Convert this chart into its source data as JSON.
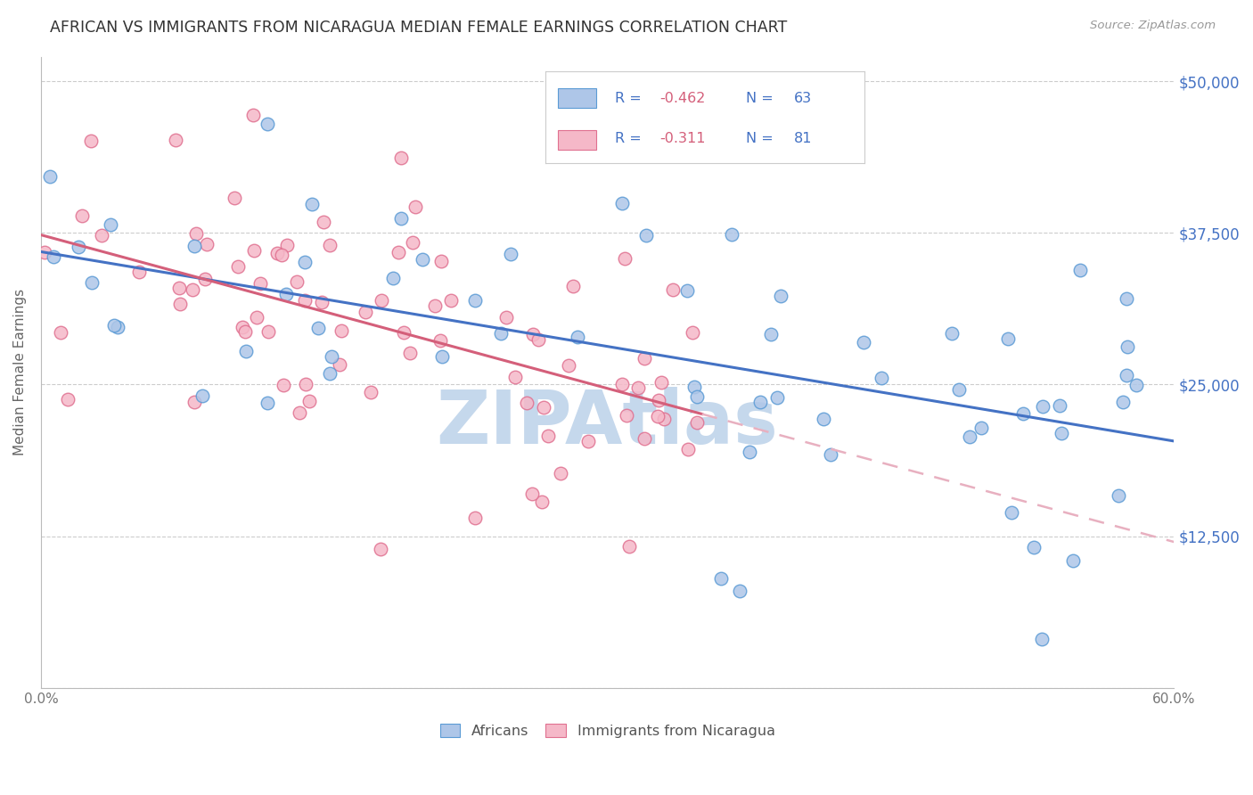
{
  "title": "AFRICAN VS IMMIGRANTS FROM NICARAGUA MEDIAN FEMALE EARNINGS CORRELATION CHART",
  "source": "Source: ZipAtlas.com",
  "ylabel": "Median Female Earnings",
  "yticks": [
    0,
    12500,
    25000,
    37500,
    50000
  ],
  "ytick_labels": [
    "",
    "$12,500",
    "$25,000",
    "$37,500",
    "$50,000"
  ],
  "xmin": 0.0,
  "xmax": 0.6,
  "ymin": 0,
  "ymax": 52000,
  "africans_R": -0.462,
  "africans_N": 63,
  "nicaragua_R": -0.311,
  "nicaragua_N": 81,
  "color_african_fill": "#aec6e8",
  "color_african_edge": "#5b9bd5",
  "color_african_line": "#4472c4",
  "color_nicaragua_fill": "#f5b8c8",
  "color_nicaragua_edge": "#e07090",
  "color_nicaragua_line": "#d45f7a",
  "color_nicaragua_dash": "#e8b0c0",
  "watermark": "ZIPAtlas",
  "watermark_color": "#c5d8ec",
  "background": "#ffffff",
  "grid_color": "#cccccc",
  "title_color": "#333333",
  "right_tick_color": "#4472c4",
  "legend_text_color": "#4472c4",
  "legend_r_value_color": "#d45f7a",
  "legend_border_color": "#cccccc"
}
